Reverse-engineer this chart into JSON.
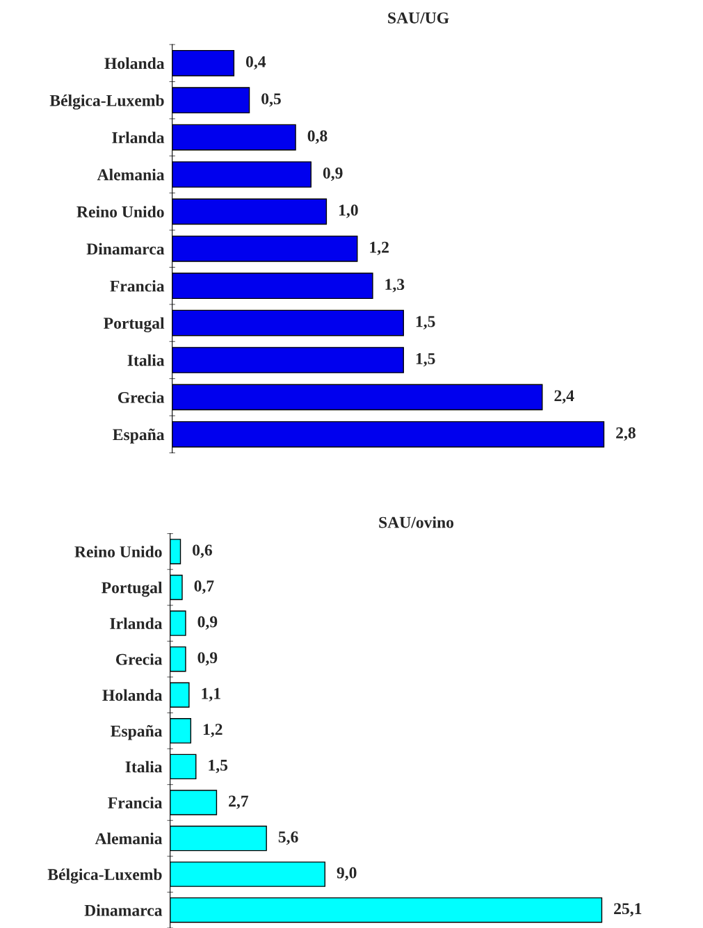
{
  "chart_data": [
    {
      "type": "bar",
      "orientation": "horizontal",
      "title": "SAU/UG",
      "categories": [
        "Holanda",
        "Bélgica-Luxemb",
        "Irlanda",
        "Alemania",
        "Reino Unido",
        "Dinamarca",
        "Francia",
        "Portugal",
        "Italia",
        "Grecia",
        "España"
      ],
      "values": [
        0.4,
        0.5,
        0.8,
        0.9,
        1.0,
        1.2,
        1.3,
        1.5,
        1.5,
        2.4,
        2.8
      ],
      "value_labels": [
        "0,4",
        "0,5",
        "0,8",
        "0,9",
        "1,0",
        "1,2",
        "1,3",
        "1,5",
        "1,5",
        "2,4",
        "2,8"
      ],
      "color": "#0000ee",
      "tick_labels": "y",
      "grid": false,
      "legend": false
    },
    {
      "type": "bar",
      "orientation": "horizontal",
      "title": "SAU/ovino",
      "categories": [
        "Reino Unido",
        "Portugal",
        "Irlanda",
        "Grecia",
        "Holanda",
        "España",
        "Italia",
        "Francia",
        "Alemania",
        "Bélgica-Luxemb",
        "Dinamarca"
      ],
      "values": [
        0.6,
        0.7,
        0.9,
        0.9,
        1.1,
        1.2,
        1.5,
        2.7,
        5.6,
        9.0,
        25.1
      ],
      "value_labels": [
        "0,6",
        "0,7",
        "0,9",
        "0,9",
        "1,1",
        "1,2",
        "1,5",
        "2,7",
        "5,6",
        "9,0",
        "25,1"
      ],
      "color": "#00ffff",
      "tick_labels": "y",
      "grid": false,
      "legend": false
    }
  ]
}
